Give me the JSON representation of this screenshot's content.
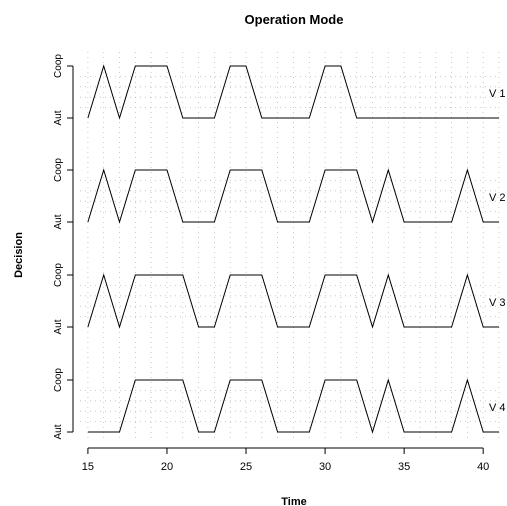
{
  "chart_data": {
    "type": "line",
    "title": "Operation Mode",
    "xlabel": "Time",
    "ylabel": "Decision",
    "xlim": [
      14.5,
      41
    ],
    "xticks": [
      15,
      20,
      25,
      30,
      35,
      40
    ],
    "level_labels": [
      "Aut",
      "Coop"
    ],
    "grid": true,
    "series": [
      {
        "name": "V 1",
        "x": [
          15,
          16,
          17,
          18,
          20,
          21,
          23,
          24,
          25,
          26,
          29,
          30,
          31,
          32,
          41
        ],
        "y": [
          0,
          1,
          0,
          1,
          1,
          0,
          0,
          1,
          1,
          0,
          0,
          1,
          1,
          0,
          0
        ]
      },
      {
        "name": "V 2",
        "x": [
          15,
          16,
          17,
          18,
          20,
          21,
          23,
          24,
          26,
          27,
          29,
          30,
          32,
          33,
          34,
          35,
          38,
          39,
          40,
          41
        ],
        "y": [
          0,
          1,
          0,
          1,
          1,
          0,
          0,
          1,
          1,
          0,
          0,
          1,
          1,
          0,
          1,
          0,
          0,
          1,
          0,
          0
        ]
      },
      {
        "name": "V 3",
        "x": [
          15,
          16,
          17,
          18,
          21,
          22,
          23,
          24,
          26,
          27,
          29,
          30,
          32,
          33,
          34,
          35,
          38,
          39,
          40,
          41
        ],
        "y": [
          0,
          1,
          0,
          1,
          1,
          0,
          0,
          1,
          1,
          0,
          0,
          1,
          1,
          0,
          1,
          0,
          0,
          1,
          0,
          0
        ]
      },
      {
        "name": "V 4",
        "x": [
          15,
          17,
          18,
          21,
          22,
          23,
          24,
          26,
          27,
          29,
          30,
          32,
          33,
          34,
          35,
          38,
          39,
          40,
          41
        ],
        "y": [
          0,
          0,
          1,
          1,
          0,
          0,
          1,
          1,
          0,
          0,
          1,
          1,
          0,
          1,
          0,
          0,
          1,
          0,
          0
        ]
      }
    ]
  }
}
